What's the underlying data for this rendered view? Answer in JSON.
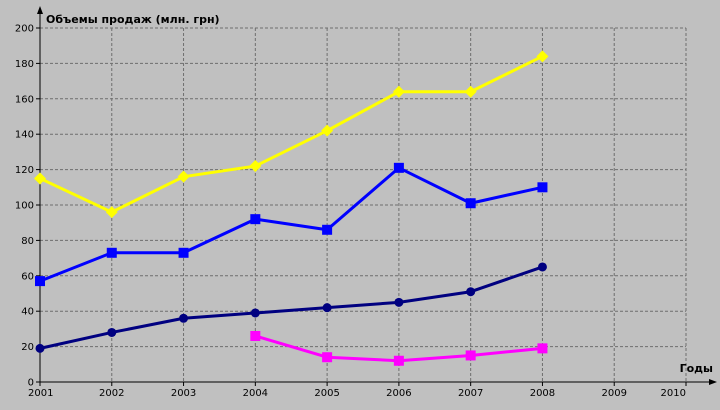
{
  "chart_data": {
    "type": "line",
    "title": "",
    "ylabel": "Объемы продаж (млн. грн)",
    "xlabel": "Годы",
    "x_ticks": [
      "2001",
      "2002",
      "2003",
      "2004",
      "2005",
      "2006",
      "2007",
      "2008",
      "2009",
      "2010"
    ],
    "xlim": [
      2001,
      2010
    ],
    "y_ticks": [
      0,
      20,
      40,
      60,
      80,
      100,
      120,
      140,
      160,
      180,
      200
    ],
    "ylim": [
      0,
      200
    ],
    "grid": true,
    "background": "#c0c0c0",
    "series": [
      {
        "color": "#ffff00",
        "marker": "diamond",
        "x": [
          2001,
          2002,
          2003,
          2004,
          2005,
          2006,
          2007,
          2008
        ],
        "values": [
          115,
          96,
          116,
          122,
          142,
          164,
          164,
          184
        ]
      },
      {
        "color": "#0000ff",
        "marker": "square",
        "x": [
          2001,
          2002,
          2003,
          2004,
          2005,
          2006,
          2007,
          2008
        ],
        "values": [
          57,
          73,
          73,
          92,
          86,
          121,
          101,
          110
        ]
      },
      {
        "color": "#000080",
        "marker": "circle",
        "x": [
          2001,
          2002,
          2003,
          2004,
          2005,
          2006,
          2007,
          2008
        ],
        "values": [
          19,
          28,
          36,
          39,
          42,
          45,
          51,
          65
        ]
      },
      {
        "color": "#ff00ff",
        "marker": "square",
        "x": [
          2004,
          2005,
          2006,
          2007,
          2008
        ],
        "values": [
          26,
          14,
          12,
          15,
          19
        ]
      }
    ]
  }
}
